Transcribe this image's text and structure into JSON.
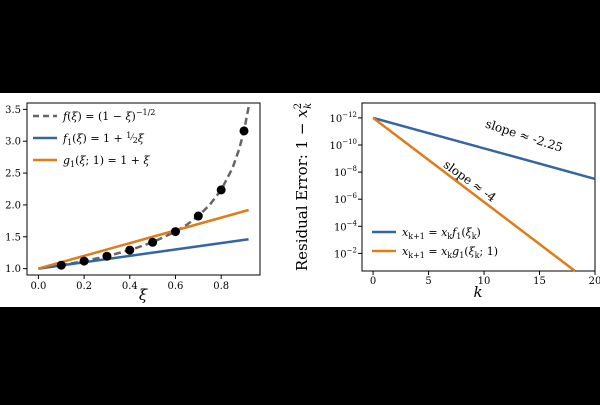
{
  "chart_data": [
    {
      "type": "line",
      "title": "",
      "xlabel": "ξ",
      "ylabel": "",
      "xlim": [
        -0.05,
        0.97
      ],
      "ylim": [
        0.9,
        3.6
      ],
      "grid": false,
      "legend_placement": "top-left",
      "x_ticks": [
        0.0,
        0.2,
        0.4,
        0.6,
        0.8
      ],
      "x_tick_labels": [
        "0.0",
        "0.2",
        "0.4",
        "0.6",
        "0.8"
      ],
      "y_ticks": [
        1.0,
        1.5,
        2.0,
        2.5,
        3.0,
        3.5
      ],
      "y_tick_labels": [
        "1.0",
        "1.5",
        "2.0",
        "2.5",
        "3.0",
        "3.5"
      ],
      "series": [
        {
          "name": "f(ξ) = (1 − ξ)^(−1/2)",
          "style": "dashed",
          "color": "#666666",
          "x": [
            0.0,
            0.1,
            0.2,
            0.3,
            0.4,
            0.5,
            0.6,
            0.65,
            0.7,
            0.75,
            0.8,
            0.85,
            0.88,
            0.9,
            0.92
          ],
          "y": [
            1.0,
            1.054,
            1.118,
            1.195,
            1.291,
            1.414,
            1.581,
            1.69,
            1.826,
            2.0,
            2.236,
            2.582,
            2.887,
            3.162,
            3.536
          ]
        },
        {
          "name": "f1(ξ) = 1 + ½ξ",
          "style": "solid",
          "color": "#3465a4",
          "x": [
            0.0,
            0.92
          ],
          "y": [
            1.0,
            1.46
          ]
        },
        {
          "name": "g1(ξ;1) = 1 + ξ",
          "style": "solid",
          "color": "#e07b18",
          "x": [
            0.0,
            0.92
          ],
          "y": [
            1.0,
            1.92
          ]
        },
        {
          "name": "",
          "style": "markers",
          "color": "#000000",
          "x": [
            0.1,
            0.2,
            0.3,
            0.4,
            0.5,
            0.6,
            0.7,
            0.8,
            0.9
          ],
          "y": [
            1.054,
            1.118,
            1.195,
            1.291,
            1.414,
            1.581,
            1.826,
            2.236,
            3.162
          ]
        }
      ]
    },
    {
      "type": "line",
      "title": "",
      "xlabel": "k",
      "ylabel": "Residual Error: 1 − x_k^2",
      "xlim": [
        -1,
        20
      ],
      "ylim_exponent": [
        -0.7,
        -13.1
      ],
      "y_scale": "log",
      "y_axis_inverted": true,
      "grid": false,
      "legend_placement": "bottom-left",
      "x_ticks": [
        0,
        5,
        10,
        15,
        20
      ],
      "x_tick_labels": [
        "0",
        "5",
        "10",
        "15",
        "20"
      ],
      "y_ticks_exponent": [
        -2,
        -4,
        -6,
        -8,
        -10,
        -12
      ],
      "y_tick_labels": [
        {
          "base": "10",
          "exp": "−2"
        },
        {
          "base": "10",
          "exp": "−4"
        },
        {
          "base": "10",
          "exp": "−6"
        },
        {
          "base": "10",
          "exp": "−8"
        },
        {
          "base": "10",
          "exp": "−10"
        },
        {
          "base": "10",
          "exp": "−12"
        }
      ],
      "series": [
        {
          "name": "x_{k+1} = x_k f1(ξ_k)",
          "color": "#3465a4",
          "x": [
            0,
            20
          ],
          "y_exponent": [
            -12,
            -7.5
          ]
        },
        {
          "name": "x_{k+1} = x_k g1(ξ_k;1)",
          "color": "#e07b18",
          "x": [
            0,
            18.2
          ],
          "y_exponent": [
            -12,
            -0.7
          ]
        }
      ],
      "annotations": [
        {
          "text": "slope ≈ -2.25",
          "x": 13.5,
          "y_exponent": -10.4,
          "angle": 18
        },
        {
          "text": "slope ≈ -4",
          "x": 8.5,
          "y_exponent": -7.1,
          "angle": 36
        }
      ]
    }
  ]
}
